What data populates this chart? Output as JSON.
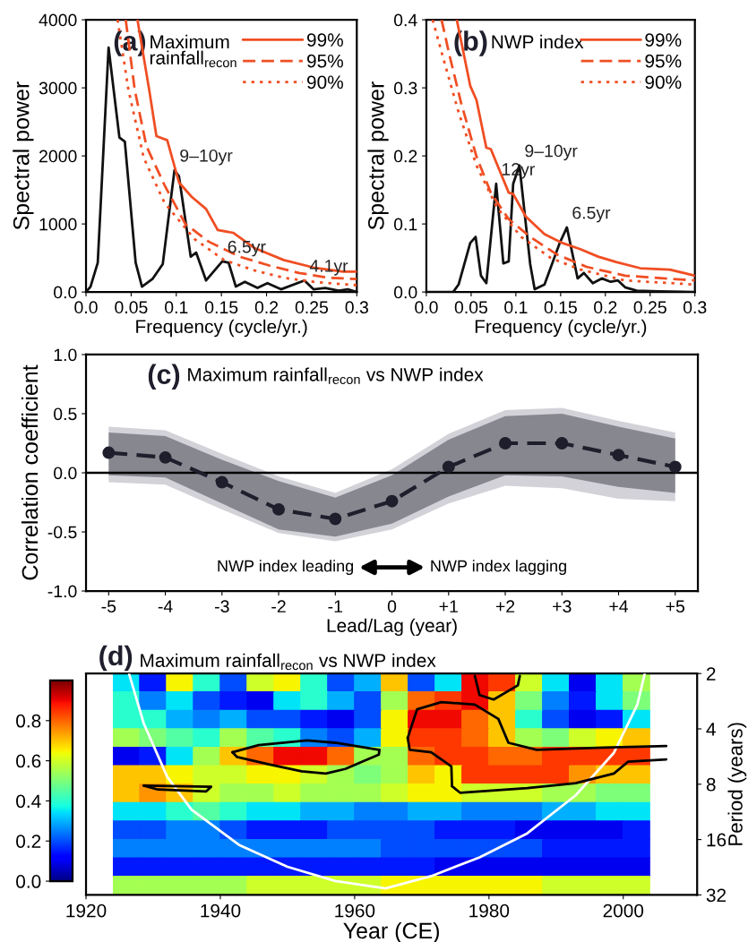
{
  "chart_data": [
    {
      "type": "line",
      "title": "Maximum rainfall$_{recon}$",
      "xlabel": "Frequency (cycle/yr.)",
      "ylabel": "Spectral power",
      "xlim": [
        0,
        0.3
      ],
      "ylim": [
        0,
        4000
      ],
      "xticks": [
        {
          "value": 0,
          "label": "0.0"
        },
        0.05,
        0.1,
        0.15,
        0.2,
        0.25,
        0.3
      ],
      "yticks": [
        {
          "value": 0,
          "label": "0.0"
        },
        1000,
        2000,
        3000,
        4000
      ],
      "legend": "top right",
      "line_style": "solid",
      "annotations": [
        "(a)",
        {
          "text": "9–10yr",
          "x": 0.098,
          "y": 1790
        },
        {
          "text": "6.5yr",
          "x": 0.151,
          "y": 450
        },
        {
          "text": "4.1yr",
          "x": 0.242,
          "y": 170
        }
      ],
      "series": [
        {
          "color": "#111111",
          "x": [
            0,
            0.005,
            0.013,
            0.025,
            0.037,
            0.043,
            0.055,
            0.062,
            0.0735,
            0.085,
            0.098,
            0.103,
            0.116,
            0.122,
            0.133,
            0.151,
            0.158,
            0.166,
            0.176,
            0.19,
            0.201,
            0.216,
            0.242,
            0.252,
            0.265,
            0.28,
            0.29,
            0.3
          ],
          "values": [
            0,
            80,
            430,
            3590,
            2270,
            2210,
            430,
            80,
            190,
            410,
            1790,
            1700,
            520,
            580,
            170,
            450,
            430,
            80,
            150,
            60,
            130,
            40,
            170,
            40,
            60,
            20,
            40,
            0
          ]
        },
        {
          "name": "99%",
          "color": "#f04e23",
          "line_style": "solid",
          "x": [
            0.057,
            0.07,
            0.078,
            0.09,
            0.103,
            0.117,
            0.133,
            0.146,
            0.163,
            0.186,
            0.219,
            0.252,
            0.285,
            0.3
          ],
          "values": [
            4000,
            2970,
            2290,
            2230,
            1610,
            1400,
            1220,
            910,
            870,
            650,
            470,
            360,
            300,
            300
          ]
        },
        {
          "name": "95%",
          "color": "#f04e23",
          "line_style": "dashed",
          "x": [
            0.044,
            0.054,
            0.067,
            0.087,
            0.11,
            0.136,
            0.17,
            0.203,
            0.236,
            0.269,
            0.3
          ],
          "values": [
            4000,
            2970,
            2140,
            1570,
            1000,
            740,
            520,
            390,
            280,
            210,
            190
          ]
        },
        {
          "name": "90%",
          "color": "#f04e23",
          "line_style": "dotted",
          "x": [
            0.035,
            0.047,
            0.064,
            0.087,
            0.12,
            0.153,
            0.186,
            0.219,
            0.252,
            0.3
          ],
          "values": [
            4000,
            2970,
            1970,
            1310,
            780,
            470,
            320,
            210,
            150,
            100
          ]
        }
      ]
    },
    {
      "type": "line",
      "title": "NWP index",
      "xlabel": "Frequency (cycle/yr.)",
      "ylabel": "Spectral power",
      "xlim": [
        0,
        0.3
      ],
      "ylim": [
        0,
        0.4
      ],
      "xticks": [
        {
          "value": 0,
          "label": "0.0"
        },
        0.05,
        0.1,
        0.15,
        0.2,
        0.25,
        0.3
      ],
      "yticks": [
        {
          "value": 0,
          "label": "0.0"
        },
        0.1,
        0.2,
        0.3,
        0.4
      ],
      "legend": "top right",
      "line_style": "solid",
      "annotations": [
        "(b)",
        {
          "text": "12yr",
          "x": 0.078,
          "y": 0.159
        },
        {
          "text": "9–10yr",
          "x": 0.104,
          "y": 0.186
        },
        {
          "text": "6.5yr",
          "x": 0.157,
          "y": 0.095
        }
      ],
      "series": [
        {
          "color": "#111111",
          "x": [
            0,
            0.03,
            0.036,
            0.049,
            0.055,
            0.061,
            0.067,
            0.078,
            0.086,
            0.092,
            0.097,
            0.104,
            0.116,
            0.121,
            0.132,
            0.149,
            0.157,
            0.169,
            0.176,
            0.186,
            0.196,
            0.206,
            0.214,
            0.222,
            0.235,
            0.26,
            0.3
          ],
          "values": [
            0,
            0,
            0.011,
            0.072,
            0.081,
            0.024,
            0.013,
            0.159,
            0.042,
            0.045,
            0.159,
            0.186,
            0.041,
            0.004,
            0.011,
            0.072,
            0.095,
            0.02,
            0.028,
            0.013,
            0.02,
            0.015,
            0.017,
            0.007,
            0.002,
            0.001,
            0
          ]
        },
        {
          "name": "99%",
          "color": "#f04e23",
          "line_style": "solid",
          "x": [
            0.034,
            0.049,
            0.056,
            0.067,
            0.072,
            0.092,
            0.097,
            0.111,
            0.132,
            0.152,
            0.172,
            0.192,
            0.212,
            0.239,
            0.272,
            0.3
          ],
          "values": [
            0.4,
            0.303,
            0.282,
            0.212,
            0.21,
            0.146,
            0.144,
            0.111,
            0.085,
            0.072,
            0.063,
            0.052,
            0.044,
            0.035,
            0.033,
            0.024
          ]
        },
        {
          "name": "95%",
          "color": "#f04e23",
          "line_style": "dashed",
          "x": [
            0.017,
            0.026,
            0.039,
            0.056,
            0.072,
            0.092,
            0.116,
            0.146,
            0.179,
            0.222,
            0.3
          ],
          "values": [
            0.4,
            0.347,
            0.277,
            0.199,
            0.146,
            0.107,
            0.081,
            0.055,
            0.037,
            0.024,
            0.017
          ]
        },
        {
          "name": "90%",
          "color": "#f04e23",
          "line_style": "dotted",
          "x": [
            0.007,
            0.019,
            0.036,
            0.056,
            0.079,
            0.106,
            0.139,
            0.172,
            0.222,
            0.3
          ],
          "values": [
            0.4,
            0.343,
            0.264,
            0.186,
            0.124,
            0.081,
            0.05,
            0.033,
            0.017,
            0.011
          ]
        }
      ]
    },
    {
      "type": "line",
      "title": "Maximum rainfall$_{recon}$ vs NWP index",
      "xlabel": "Lead/Lag (year)",
      "ylabel": "Correlation coefficient",
      "categories": [
        "-5",
        "-4",
        "-3",
        "-2",
        "-1",
        "0",
        "+1",
        "+2",
        "+3",
        "+4",
        "+5"
      ],
      "ylim": [
        -1,
        1
      ],
      "yticks": [
        {
          "value": -1,
          "label": "-1.0"
        },
        {
          "value": -0.5,
          "label": "-0.5"
        },
        {
          "value": 0,
          "label": "0.0"
        },
        {
          "value": 0.5,
          "label": "0.5"
        },
        {
          "value": 1,
          "label": "1.0"
        }
      ],
      "marker": "circle",
      "line_style": "dashed",
      "ref_lines": [
        {
          "axis": "y",
          "value": 0,
          "color": "#000000"
        }
      ],
      "annotations": [
        "(c)",
        "NWP index leading",
        "NWP index lagging"
      ],
      "series": [
        {
          "color": "#d2d2d8",
          "lower": [
            -0.08,
            -0.1,
            -0.31,
            -0.51,
            -0.58,
            -0.48,
            -0.26,
            -0.11,
            -0.13,
            -0.22,
            -0.24
          ],
          "upper": [
            0.39,
            0.36,
            0.16,
            -0.03,
            -0.17,
            0.03,
            0.33,
            0.53,
            0.55,
            0.44,
            0.34
          ],
          "values": [
            null,
            null,
            null,
            null,
            null,
            null,
            null,
            null,
            null,
            null,
            null
          ]
        },
        {
          "color": "#1e1e2c",
          "lower": [
            -0.02,
            -0.04,
            -0.26,
            -0.48,
            -0.54,
            -0.43,
            -0.2,
            -0.02,
            -0.03,
            -0.12,
            -0.17
          ],
          "upper": [
            0.34,
            0.31,
            0.11,
            -0.07,
            -0.21,
            -0.02,
            0.28,
            0.48,
            0.5,
            0.39,
            0.29
          ],
          "values": [
            0.17,
            0.13,
            -0.08,
            -0.31,
            -0.39,
            -0.24,
            0.05,
            0.25,
            0.25,
            0.15,
            0.05
          ]
        }
      ]
    },
    {
      "type": "line",
      "title": "Maximum rainfall$_{recon}$ vs NWP index",
      "xlabel": "Year (CE)",
      "ylabel": "Period (years)",
      "log": "y",
      "xlim": [
        1920,
        2011
      ],
      "xticks": [
        1920,
        1940,
        1960,
        1980,
        2000
      ],
      "ylim": [
        32,
        2
      ],
      "yticks": [
        2,
        4,
        8,
        16,
        32
      ],
      "line_style": "solid",
      "annotations": [
        "(d)"
      ],
      "series": [
        {
          "color": "#ffffff",
          "x": [
            1926.4,
            1928.6,
            1932.1,
            1935.7,
            1942.9,
            1950,
            1957.1,
            1964.6,
            1971.4,
            1978.6,
            1985.7,
            1992.9,
            1998.6,
            2002.1,
            2003.2
          ],
          "values": [
            2,
            3.74,
            7.3,
            11,
            17.2,
            22.5,
            26.9,
            29.5,
            25.3,
            20,
            14.8,
            9.2,
            5.4,
            2.95,
            2
          ]
        },
        {
          "color": "#000000",
          "x": [
            1941.8,
            1945.7,
            1952.9,
            1957.1,
            1963.6
          ],
          "values": [
            5.36,
            4.9,
            4.62,
            4.76,
            5.2
          ]
        },
        {
          "color": "#000000",
          "x": [
            1941.8,
            1942.5,
            1947.1,
            1952.1,
            1955.7,
            1958.6,
            1961.4,
            1963.6,
            1963.7
          ],
          "values": [
            5.36,
            5.69,
            6.22,
            6.8,
            7.0,
            6.61,
            5.97,
            5.52,
            5.2
          ]
        },
        {
          "color": "#000000",
          "x": [
            1928.6,
            1938.6
          ],
          "values": [
            8.15,
            8.26
          ]
        },
        {
          "color": "#000000",
          "x": [
            1928.6,
            1930.7,
            1937.9,
            1938.6
          ],
          "values": [
            8.15,
            8.55,
            8.75,
            8.26
          ]
        },
        {
          "color": "#000000",
          "x": [
            1967.9,
            1969.3,
            1972.9,
            1977.9,
            1981.4,
            1982.9,
            1987.1,
            1997.1,
            2006.4
          ],
          "values": [
            4.48,
            3.13,
            2.86,
            2.95,
            3.53,
            4.76,
            5.2,
            5.05,
            4.96
          ]
        },
        {
          "color": "#000000",
          "x": [
            1967.9,
            1968.2,
            1971.4,
            1974.4,
            1974.5
          ],
          "values": [
            4.48,
            5.2,
            5.36,
            6.4,
            8.2
          ]
        },
        {
          "color": "#000000",
          "x": [
            1974.5,
            1975.7,
            1985.7,
            1992.9,
            1998.6,
            2000.7,
            2006.4
          ],
          "values": [
            8.2,
            8.9,
            8.4,
            7.9,
            7.0,
            6.04,
            5.86
          ]
        },
        {
          "color": "#000000",
          "x": [
            1977.9,
            1978.6,
            1980.7,
            1984.3,
            1984.6
          ],
          "values": [
            2.06,
            2.62,
            2.77,
            2.32,
            2.06
          ]
        }
      ]
    },
    {
      "type": "heatmap",
      "clim": [
        0,
        1
      ],
      "cticks": [
        {
          "value": 0,
          "label": "0.0"
        },
        {
          "value": 0.2,
          "label": "0.2"
        },
        {
          "value": 0.4,
          "label": "0.4"
        },
        {
          "value": 0.6,
          "label": "0.6"
        },
        {
          "value": 0.8,
          "label": "0.8"
        }
      ],
      "categories": [
        null,
        null,
        null,
        null,
        null,
        null,
        null,
        null,
        null,
        null,
        null,
        null,
        null,
        null,
        null,
        null,
        null,
        null,
        null,
        null
      ],
      "y_categories": [
        null,
        null,
        null,
        null,
        null,
        null,
        null,
        null,
        null,
        null,
        null,
        null
      ],
      "cells": [
        [
          0.35,
          0.15,
          0.65,
          0.4,
          0.2,
          0.6,
          0.65,
          0.4,
          0.2,
          0.3,
          0.7,
          0.2,
          0.35,
          0.9,
          0.85,
          0.6,
          0.35,
          0.1,
          0.35,
          0.55
        ],
        [
          0.4,
          0.25,
          0.35,
          0.2,
          0.15,
          0.1,
          0.35,
          0.4,
          0.3,
          0.2,
          0.55,
          0.8,
          0.85,
          0.9,
          0.7,
          0.5,
          0.25,
          0.15,
          0.35,
          0.5
        ],
        [
          0.4,
          0.4,
          0.3,
          0.25,
          0.3,
          0.2,
          0.2,
          0.15,
          0.1,
          0.2,
          0.65,
          0.9,
          0.9,
          0.8,
          0.7,
          0.4,
          0.2,
          0.1,
          0.15,
          0.35
        ],
        [
          0.55,
          0.5,
          0.45,
          0.4,
          0.55,
          0.45,
          0.4,
          0.25,
          0.2,
          0.3,
          0.65,
          0.85,
          0.85,
          0.8,
          0.7,
          0.55,
          0.5,
          0.6,
          0.65,
          0.7
        ],
        [
          0.1,
          0.15,
          0.35,
          0.55,
          0.7,
          0.8,
          0.9,
          0.9,
          0.8,
          0.55,
          0.55,
          0.8,
          0.85,
          0.85,
          0.8,
          0.8,
          0.85,
          0.85,
          0.85,
          0.85
        ],
        [
          0.7,
          0.7,
          0.65,
          0.6,
          0.6,
          0.65,
          0.65,
          0.6,
          0.55,
          0.5,
          0.55,
          0.7,
          0.65,
          0.85,
          0.85,
          0.85,
          0.85,
          0.75,
          0.7,
          0.7
        ],
        [
          0.7,
          0.75,
          0.7,
          0.6,
          0.55,
          0.55,
          0.6,
          0.55,
          0.55,
          0.55,
          0.6,
          0.65,
          0.65,
          0.6,
          0.6,
          0.6,
          0.55,
          0.55,
          0.5,
          0.5
        ],
        [
          0.35,
          0.35,
          0.4,
          0.45,
          0.4,
          0.35,
          0.35,
          0.3,
          0.3,
          0.25,
          0.25,
          0.3,
          0.3,
          0.25,
          0.25,
          0.25,
          0.3,
          0.3,
          0.35,
          0.35
        ],
        [
          0.2,
          0.2,
          0.25,
          0.25,
          0.2,
          0.15,
          0.15,
          0.15,
          0.2,
          0.2,
          0.2,
          0.2,
          0.15,
          0.15,
          0.15,
          0.1,
          0.1,
          0.1,
          0.1,
          0.15
        ],
        [
          0.25,
          0.25,
          0.25,
          0.25,
          0.25,
          0.25,
          0.25,
          0.25,
          0.25,
          0.25,
          0.2,
          0.2,
          0.2,
          0.2,
          0.2,
          0.2,
          0.15,
          0.15,
          0.15,
          0.15
        ],
        [
          0.15,
          0.15,
          0.15,
          0.15,
          0.15,
          0.15,
          0.15,
          0.15,
          0.15,
          0.15,
          0.15,
          0.15,
          0.1,
          0.1,
          0.1,
          0.1,
          0.1,
          0.1,
          0.1,
          0.1
        ],
        [
          0.55,
          0.55,
          0.55,
          0.55,
          0.55,
          0.6,
          0.6,
          0.6,
          0.6,
          0.6,
          0.65,
          0.65,
          0.65,
          0.65,
          0.65,
          0.65,
          0.6,
          0.6,
          0.6,
          0.6
        ]
      ]
    }
  ]
}
